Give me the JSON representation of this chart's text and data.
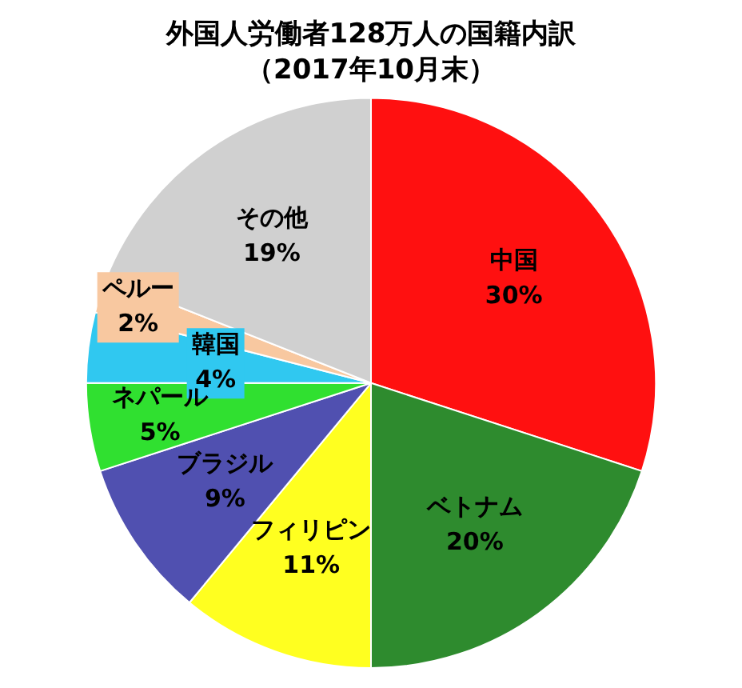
{
  "chart_data": {
    "type": "pie",
    "title": "外国人労働者128万人の国籍内訳",
    "subtitle": "（2017年10月末）",
    "categories": [
      "中国",
      "ベトナム",
      "フィリピン",
      "ブラジル",
      "ネパール",
      "韓国",
      "ペルー",
      "その他"
    ],
    "values": [
      30,
      20,
      11,
      9,
      5,
      4,
      2,
      19
    ],
    "value_labels": [
      "30%",
      "20%",
      "11%",
      "9%",
      "5%",
      "4%",
      "2%",
      "19%"
    ],
    "colors": [
      "#ff1010",
      "#2e8b2e",
      "#ffff20",
      "#5050b0",
      "#30e030",
      "#30c8f0",
      "#f8c8a0",
      "#d0d0d0"
    ],
    "legend": false
  }
}
